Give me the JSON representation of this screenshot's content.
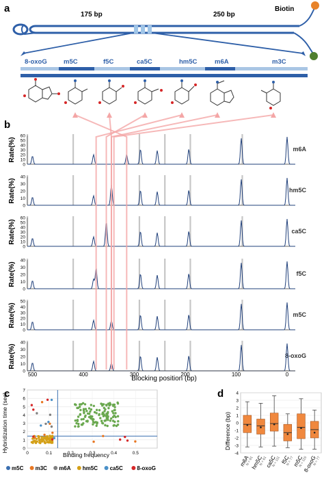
{
  "panel_labels": [
    "a",
    "b",
    "c",
    "d"
  ],
  "panel_a": {
    "left_length": "175 bp",
    "right_length": "250 bp",
    "biotin_label": "Biotin",
    "modifications": [
      "8-oxoG",
      "m5C",
      "f5C",
      "ca5C",
      "hm5C",
      "m6A",
      "m3C"
    ]
  },
  "panel_b": {
    "y_axis_label": "Rate(%)",
    "x_axis_label": "Blocking position (bp)",
    "x_ticks": [
      "500",
      "400",
      "300",
      "200",
      "100",
      "0"
    ],
    "tracks": [
      {
        "name": "m6A",
        "yticks": [
          "60",
          "50",
          "40",
          "30",
          "20",
          "10",
          "0"
        ]
      },
      {
        "name": "hm5C",
        "yticks": [
          "40",
          "30",
          "20",
          "10",
          "0"
        ]
      },
      {
        "name": "ca5C",
        "yticks": [
          "60",
          "50",
          "40",
          "30",
          "20",
          "10",
          "0"
        ]
      },
      {
        "name": "f5C",
        "yticks": [
          "40",
          "30",
          "20",
          "10",
          "0"
        ]
      },
      {
        "name": "m5C",
        "yticks": [
          "50",
          "40",
          "30",
          "20",
          "10",
          "0"
        ]
      },
      {
        "name": "8-oxoG",
        "yticks": [
          "40",
          "30",
          "20",
          "10",
          "0"
        ]
      }
    ]
  },
  "chart_data": [
    {
      "type": "scatter",
      "panel": "c",
      "xlabel": "Binding frequency",
      "ylabel": "Hybridization time (sec)",
      "xlim": [
        0,
        0.6
      ],
      "ylim": [
        0,
        7
      ],
      "x_ticks": [
        "0",
        "0.1",
        "0.2",
        "0.3",
        "0.4",
        "0.5"
      ],
      "y_ticks": [
        "0",
        "1",
        "2",
        "3",
        "4",
        "5",
        "6",
        "7"
      ],
      "legend": [
        "m5C",
        "m3C",
        "m6A",
        "hm5C",
        "ca5C",
        "8-oxoG"
      ],
      "colors": {
        "m5C": "#3a6fb0",
        "m3C": "#e87722",
        "m6A": "#7f7f7f",
        "hm5C": "#d4a017",
        "ca5C": "#4a90c8",
        "8-oxoG": "#d62728",
        "cluster": "#6aa84f"
      },
      "threshold_x": 0.14,
      "threshold_y": 1.45
    },
    {
      "type": "box",
      "panel": "d",
      "ylabel": "Difference (bp)",
      "ylim": [
        -4,
        4
      ],
      "y_ticks": [
        "4",
        "3",
        "2",
        "1",
        "0",
        "-1",
        "-2",
        "-3",
        "-4"
      ],
      "categories": [
        "m6A",
        "hm5C",
        "ca5C",
        "f5C",
        "m5C",
        "8-oxoG"
      ],
      "n_labels": [
        "N = 91",
        "N = 61",
        "N = 111",
        "N = 77",
        "N = 115",
        "N = 77"
      ],
      "boxes": [
        {
          "q1": -1.3,
          "median": -0.2,
          "q3": 1.0,
          "low": -3.2,
          "high": 2.8,
          "mean": -0.3
        },
        {
          "q1": -1.5,
          "median": -0.4,
          "q3": 0.5,
          "low": -3.2,
          "high": 2.6,
          "mean": -0.6
        },
        {
          "q1": -1.1,
          "median": -0.1,
          "q3": 1.3,
          "low": -3.1,
          "high": 3.6,
          "mean": -0.2
        },
        {
          "q1": -2.4,
          "median": -1.3,
          "q3": -0.2,
          "low": -3.3,
          "high": 1.2,
          "mean": -1.5
        },
        {
          "q1": -2.1,
          "median": -0.6,
          "q3": 1.2,
          "low": -3.5,
          "high": 3.2,
          "mean": -0.7
        },
        {
          "q1": -2.0,
          "median": -0.9,
          "q3": 0.2,
          "low": -3.5,
          "high": 1.7,
          "mean": -1.3
        }
      ]
    }
  ]
}
